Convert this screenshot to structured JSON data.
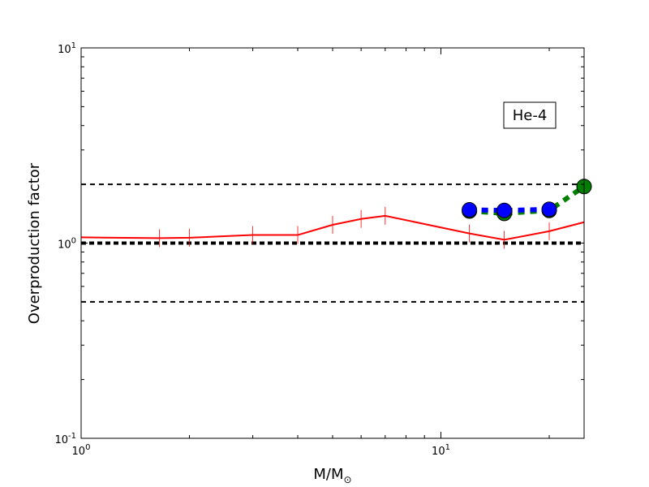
{
  "chart_data": {
    "type": "line",
    "xscale": "log",
    "yscale": "log",
    "xlim": [
      1,
      25
    ],
    "ylim": [
      0.1,
      10
    ],
    "xlabel_main": "M/M",
    "xlabel_sub": "⊙",
    "ylabel": "Overproduction factor",
    "annotation": "He-4",
    "xticks": [
      {
        "value": 1,
        "base": "10",
        "exp": "0"
      },
      {
        "value": 10,
        "base": "10",
        "exp": "1"
      }
    ],
    "yticks": [
      {
        "value": 0.1,
        "base": "10",
        "exp": "-1"
      },
      {
        "value": 1,
        "base": "10",
        "exp": "0"
      },
      {
        "value": 10,
        "base": "10",
        "exp": "1"
      }
    ],
    "reference_lines": [
      {
        "y": 2.0,
        "style": "dashed",
        "weight": "thin",
        "color": "#000000"
      },
      {
        "y": 1.0,
        "style": "dashed",
        "weight": "thick",
        "color": "#000000"
      },
      {
        "y": 0.5,
        "style": "dashed",
        "weight": "thin",
        "color": "#000000"
      }
    ],
    "series": [
      {
        "color": "#ff0000",
        "style": "solid",
        "marker": "vline",
        "x": [
          1,
          1.65,
          2,
          3,
          4,
          5,
          6,
          7,
          12,
          15,
          20,
          25
        ],
        "y": [
          1.07,
          1.06,
          1.065,
          1.1,
          1.1,
          1.24,
          1.33,
          1.38,
          1.12,
          1.04,
          1.15,
          1.28
        ]
      },
      {
        "color": "#0000ff",
        "style": "dashed",
        "marker": "circle",
        "x": [
          12,
          15,
          20
        ],
        "y": [
          1.48,
          1.47,
          1.49
        ]
      },
      {
        "color": "#007f00",
        "style": "dashed",
        "marker": "circle",
        "x": [
          12,
          15,
          20,
          25
        ],
        "y": [
          1.46,
          1.42,
          1.47,
          1.95
        ]
      }
    ]
  }
}
